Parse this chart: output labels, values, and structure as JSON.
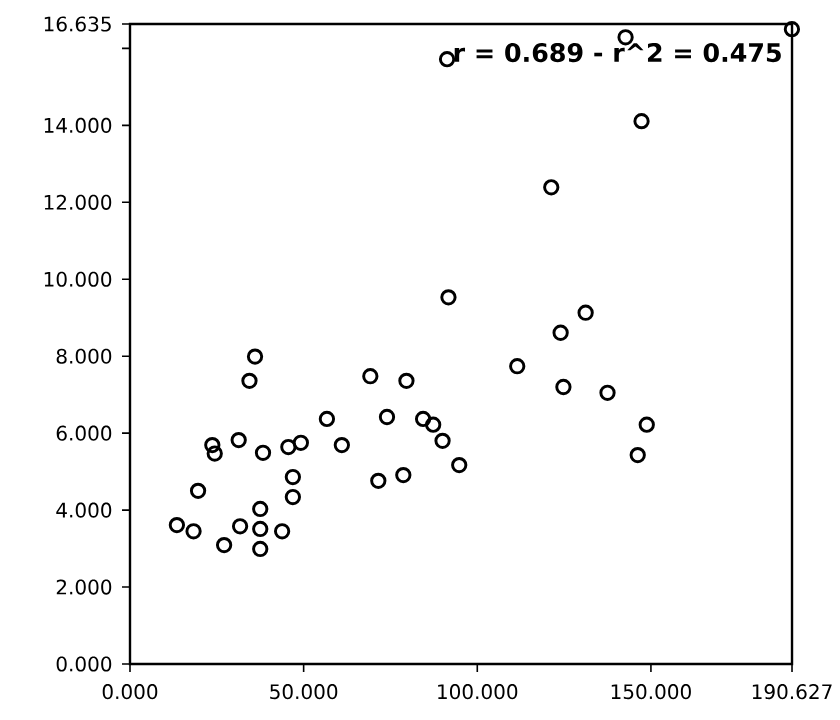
{
  "chart_data": {
    "type": "scatter",
    "marker": "circle",
    "color": "#000000",
    "x": [
      13.5,
      18.3,
      19.6,
      23.7,
      24.4,
      27.1,
      31.3,
      31.7,
      36.0,
      34.4,
      37.5,
      37.5,
      37.5,
      38.3,
      43.8,
      45.6,
      46.9,
      46.9,
      49.2,
      56.7,
      61.0,
      69.2,
      71.5,
      74.0,
      78.7,
      79.6,
      84.4,
      87.3,
      90.0,
      94.8,
      111.5,
      124.0,
      124.8,
      131.2,
      137.5,
      146.2,
      148.8,
      91.3,
      91.7,
      121.3,
      147.3,
      142.7,
      190.6
    ],
    "values": [
      3.61,
      3.45,
      4.5,
      5.69,
      5.47,
      3.09,
      5.82,
      3.58,
      7.99,
      7.36,
      4.03,
      3.51,
      2.99,
      5.49,
      3.45,
      5.64,
      4.86,
      4.34,
      5.75,
      6.37,
      5.69,
      7.48,
      4.76,
      6.42,
      4.91,
      7.36,
      6.37,
      6.22,
      5.8,
      5.17,
      7.74,
      8.61,
      7.2,
      9.13,
      7.05,
      5.43,
      6.22,
      15.72,
      9.53,
      12.39,
      14.11,
      16.29,
      16.5
    ],
    "xlim": [
      0,
      190.627
    ],
    "xticks": [
      {
        "value": 0,
        "label": "0.000"
      },
      {
        "value": 50,
        "label": "50.000"
      },
      {
        "value": 100,
        "label": "100.000"
      },
      {
        "value": 150,
        "label": "150.000"
      },
      {
        "value": 190.627,
        "label": "190.627"
      }
    ],
    "ylim": [
      0,
      16.635
    ],
    "yticks": [
      {
        "value": 0,
        "label": "0.000"
      },
      {
        "value": 2,
        "label": "2.000"
      },
      {
        "value": 4,
        "label": "4.000"
      },
      {
        "value": 6,
        "label": "6.000"
      },
      {
        "value": 8,
        "label": "8.000"
      },
      {
        "value": 10,
        "label": "10.000"
      },
      {
        "value": 12,
        "label": "12.000"
      },
      {
        "value": 14,
        "label": "14.000"
      },
      {
        "value": 16,
        "label": null
      },
      {
        "value": 16.635,
        "label": "16.635"
      }
    ],
    "annotations": [
      "r = 0.689 - r^2 = 0.475"
    ]
  }
}
